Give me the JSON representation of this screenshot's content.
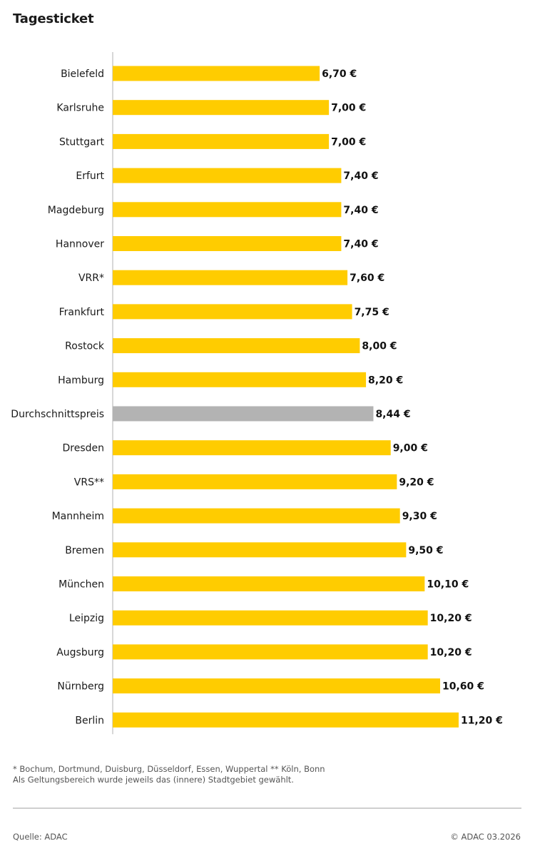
{
  "chart_data": {
    "type": "bar",
    "orientation": "horizontal",
    "title": "Tagesticket",
    "categories": [
      "Bielefeld",
      "Karlsruhe",
      "Stuttgart",
      "Erfurt",
      "Magdeburg",
      "Hannover",
      "VRR*",
      "Frankfurt",
      "Rostock",
      "Hamburg",
      "Durchschnittspreis",
      "Dresden",
      "VRS**",
      "Mannheim",
      "Bremen",
      "München",
      "Leipzig",
      "Augsburg",
      "Nürnberg",
      "Berlin"
    ],
    "values": [
      6.7,
      7.0,
      7.0,
      7.4,
      7.4,
      7.4,
      7.6,
      7.75,
      8.0,
      8.2,
      8.44,
      9.0,
      9.2,
      9.3,
      9.5,
      10.1,
      10.2,
      10.2,
      10.6,
      11.2
    ],
    "value_labels": [
      "6,70 €",
      "7,00 €",
      "7,00 €",
      "7,40 €",
      "7,40 €",
      "7,40 €",
      "7,60 €",
      "7,75 €",
      "8,00 €",
      "8,20 €",
      "8,44 €",
      "9,00 €",
      "9,20 €",
      "9,30 €",
      "9,50 €",
      "10,10 €",
      "10,20 €",
      "10,20 €",
      "10,60 €",
      "11,20 €"
    ],
    "highlight_category": "Durchschnittspreis",
    "bar_color": "#FFCC00",
    "highlight_color": "#B3B3B3",
    "xlim": [
      0,
      11.2
    ],
    "grid": false,
    "legend": "none"
  },
  "footnotes": {
    "line1": "* Bochum, Dortmund, Duisburg, Düsseldorf, Essen, Wuppertal    ** Köln, Bonn",
    "line2": "Als Geltungsbereich wurde jeweils das (innere) Stadtgebiet gewählt."
  },
  "source": "Quelle: ADAC",
  "copyright": "© ADAC 03.2026"
}
